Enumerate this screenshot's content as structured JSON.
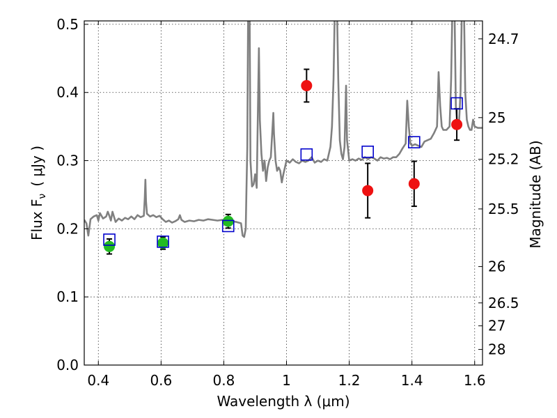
{
  "chart_data": {
    "type": "scatter",
    "xlabel": "Wavelength  λ (μm)",
    "ylabel": "Flux  F",
    "ylabel_sub": "ν",
    "ylabel_unit": "( μJy )",
    "ylabel_right": "Magnitude (AB)",
    "xlim": [
      0.355,
      1.625
    ],
    "ylim": [
      0.0,
      0.505
    ],
    "x_ticks": [
      0.4,
      0.6,
      0.8,
      1.0,
      1.2,
      1.4,
      1.6
    ],
    "x_tick_labels": [
      "0.4",
      "0.6",
      "0.8",
      "1",
      "1.2",
      "1.4",
      "1.6"
    ],
    "y_ticks": [
      0.0,
      0.1,
      0.2,
      0.3,
      0.4,
      0.5
    ],
    "y_tick_labels": [
      "0.0",
      "0.1",
      "0.2",
      "0.3",
      "0.4",
      "0.5"
    ],
    "right_ticks": [
      {
        "label": "24.7",
        "mag": 24.7
      },
      {
        "label": "25",
        "mag": 25.0
      },
      {
        "label": "25.2",
        "mag": 25.2
      },
      {
        "label": "25.5",
        "mag": 25.5
      },
      {
        "label": "26",
        "mag": 26.0
      },
      {
        "label": "26.5",
        "mag": 26.5
      },
      {
        "label": "27",
        "mag": 27.0
      },
      {
        "label": "28",
        "mag": 28.0
      }
    ],
    "grid": true,
    "colors": {
      "spectrum": "#808080",
      "green_points": "#22bb22",
      "red_points": "#ee1111",
      "model_boxes": "#0000cc",
      "errorbars": "#000000"
    },
    "series": [
      {
        "kind": "line",
        "points": [
          [
            0.355,
            0.213
          ],
          [
            0.362,
            0.208
          ],
          [
            0.368,
            0.19
          ],
          [
            0.375,
            0.214
          ],
          [
            0.385,
            0.218
          ],
          [
            0.395,
            0.22
          ],
          [
            0.4,
            0.212
          ],
          [
            0.405,
            0.223
          ],
          [
            0.415,
            0.215
          ],
          [
            0.425,
            0.218
          ],
          [
            0.43,
            0.225
          ],
          [
            0.435,
            0.219
          ],
          [
            0.44,
            0.212
          ],
          [
            0.445,
            0.225
          ],
          [
            0.455,
            0.21
          ],
          [
            0.465,
            0.215
          ],
          [
            0.475,
            0.212
          ],
          [
            0.485,
            0.216
          ],
          [
            0.495,
            0.214
          ],
          [
            0.505,
            0.218
          ],
          [
            0.515,
            0.214
          ],
          [
            0.525,
            0.22
          ],
          [
            0.535,
            0.217
          ],
          [
            0.545,
            0.219
          ],
          [
            0.548,
            0.245
          ],
          [
            0.55,
            0.272
          ],
          [
            0.552,
            0.24
          ],
          [
            0.555,
            0.222
          ],
          [
            0.565,
            0.218
          ],
          [
            0.575,
            0.22
          ],
          [
            0.585,
            0.217
          ],
          [
            0.595,
            0.219
          ],
          [
            0.605,
            0.214
          ],
          [
            0.615,
            0.21
          ],
          [
            0.625,
            0.212
          ],
          [
            0.635,
            0.209
          ],
          [
            0.645,
            0.211
          ],
          [
            0.655,
            0.214
          ],
          [
            0.66,
            0.22
          ],
          [
            0.665,
            0.213
          ],
          [
            0.675,
            0.21
          ],
          [
            0.69,
            0.212
          ],
          [
            0.705,
            0.211
          ],
          [
            0.72,
            0.213
          ],
          [
            0.735,
            0.212
          ],
          [
            0.75,
            0.214
          ],
          [
            0.765,
            0.213
          ],
          [
            0.78,
            0.212
          ],
          [
            0.795,
            0.213
          ],
          [
            0.81,
            0.212
          ],
          [
            0.825,
            0.211
          ],
          [
            0.84,
            0.21
          ],
          [
            0.855,
            0.208
          ],
          [
            0.86,
            0.19
          ],
          [
            0.865,
            0.188
          ],
          [
            0.87,
            0.2
          ],
          [
            0.872,
            0.25
          ],
          [
            0.875,
            0.32
          ],
          [
            0.878,
            0.55
          ],
          [
            0.882,
            0.55
          ],
          [
            0.885,
            0.3
          ],
          [
            0.89,
            0.262
          ],
          [
            0.895,
            0.265
          ],
          [
            0.9,
            0.28
          ],
          [
            0.905,
            0.26
          ],
          [
            0.908,
            0.35
          ],
          [
            0.912,
            0.465
          ],
          [
            0.915,
            0.36
          ],
          [
            0.92,
            0.31
          ],
          [
            0.925,
            0.285
          ],
          [
            0.93,
            0.3
          ],
          [
            0.935,
            0.27
          ],
          [
            0.94,
            0.29
          ],
          [
            0.945,
            0.3
          ],
          [
            0.95,
            0.305
          ],
          [
            0.955,
            0.345
          ],
          [
            0.958,
            0.37
          ],
          [
            0.96,
            0.34
          ],
          [
            0.965,
            0.3
          ],
          [
            0.97,
            0.285
          ],
          [
            0.975,
            0.29
          ],
          [
            0.98,
            0.285
          ],
          [
            0.985,
            0.268
          ],
          [
            0.99,
            0.28
          ],
          [
            1.0,
            0.3
          ],
          [
            1.01,
            0.297
          ],
          [
            1.02,
            0.302
          ],
          [
            1.03,
            0.298
          ],
          [
            1.04,
            0.296
          ],
          [
            1.05,
            0.3
          ],
          [
            1.06,
            0.298
          ],
          [
            1.07,
            0.3
          ],
          [
            1.08,
            0.305
          ],
          [
            1.09,
            0.297
          ],
          [
            1.1,
            0.3
          ],
          [
            1.11,
            0.298
          ],
          [
            1.12,
            0.302
          ],
          [
            1.13,
            0.3
          ],
          [
            1.14,
            0.32
          ],
          [
            1.145,
            0.35
          ],
          [
            1.15,
            0.42
          ],
          [
            1.155,
            0.55
          ],
          [
            1.16,
            0.55
          ],
          [
            1.165,
            0.42
          ],
          [
            1.17,
            0.33
          ],
          [
            1.175,
            0.31
          ],
          [
            1.18,
            0.302
          ],
          [
            1.185,
            0.32
          ],
          [
            1.19,
            0.41
          ],
          [
            1.193,
            0.33
          ],
          [
            1.2,
            0.3
          ],
          [
            1.21,
            0.302
          ],
          [
            1.22,
            0.3
          ],
          [
            1.23,
            0.303
          ],
          [
            1.24,
            0.301
          ],
          [
            1.25,
            0.305
          ],
          [
            1.26,
            0.302
          ],
          [
            1.27,
            0.305
          ],
          [
            1.28,
            0.303
          ],
          [
            1.29,
            0.3
          ],
          [
            1.3,
            0.305
          ],
          [
            1.31,
            0.303
          ],
          [
            1.32,
            0.304
          ],
          [
            1.33,
            0.302
          ],
          [
            1.34,
            0.305
          ],
          [
            1.35,
            0.305
          ],
          [
            1.36,
            0.31
          ],
          [
            1.37,
            0.318
          ],
          [
            1.38,
            0.325
          ],
          [
            1.385,
            0.388
          ],
          [
            1.39,
            0.35
          ],
          [
            1.395,
            0.325
          ],
          [
            1.4,
            0.322
          ],
          [
            1.41,
            0.324
          ],
          [
            1.42,
            0.322
          ],
          [
            1.43,
            0.32
          ],
          [
            1.44,
            0.328
          ],
          [
            1.45,
            0.33
          ],
          [
            1.46,
            0.332
          ],
          [
            1.47,
            0.34
          ],
          [
            1.48,
            0.35
          ],
          [
            1.485,
            0.43
          ],
          [
            1.49,
            0.38
          ],
          [
            1.495,
            0.35
          ],
          [
            1.5,
            0.345
          ],
          [
            1.51,
            0.345
          ],
          [
            1.52,
            0.35
          ],
          [
            1.525,
            0.42
          ],
          [
            1.53,
            0.55
          ],
          [
            1.535,
            0.55
          ],
          [
            1.54,
            0.38
          ],
          [
            1.545,
            0.35
          ],
          [
            1.55,
            0.355
          ],
          [
            1.555,
            0.4
          ],
          [
            1.56,
            0.55
          ],
          [
            1.565,
            0.55
          ],
          [
            1.57,
            0.4
          ],
          [
            1.575,
            0.36
          ],
          [
            1.58,
            0.35
          ],
          [
            1.585,
            0.345
          ],
          [
            1.59,
            0.345
          ],
          [
            1.595,
            0.36
          ],
          [
            1.6,
            0.35
          ],
          [
            1.61,
            0.348
          ],
          [
            1.625,
            0.348
          ]
        ]
      },
      {
        "kind": "errorbar_markers",
        "marker": "circle",
        "color": "#22bb22",
        "points": [
          {
            "x": 0.435,
            "y": 0.174,
            "err": 0.011
          },
          {
            "x": 0.606,
            "y": 0.179,
            "err": 0.009
          },
          {
            "x": 0.814,
            "y": 0.211,
            "err": 0.01
          }
        ]
      },
      {
        "kind": "errorbar_markers",
        "marker": "circle",
        "color": "#ee1111",
        "points": [
          {
            "x": 1.064,
            "y": 0.41,
            "err": 0.024
          },
          {
            "x": 1.259,
            "y": 0.256,
            "err": 0.04
          },
          {
            "x": 1.407,
            "y": 0.266,
            "err": 0.033
          },
          {
            "x": 1.543,
            "y": 0.353,
            "err": 0.023
          }
        ]
      },
      {
        "kind": "markers",
        "marker": "square",
        "color": "#0000cc",
        "points": [
          {
            "x": 0.435,
            "y": 0.184
          },
          {
            "x": 0.606,
            "y": 0.181
          },
          {
            "x": 0.814,
            "y": 0.204
          },
          {
            "x": 1.064,
            "y": 0.309
          },
          {
            "x": 1.259,
            "y": 0.313
          },
          {
            "x": 1.407,
            "y": 0.327
          },
          {
            "x": 1.543,
            "y": 0.384
          }
        ]
      }
    ]
  }
}
